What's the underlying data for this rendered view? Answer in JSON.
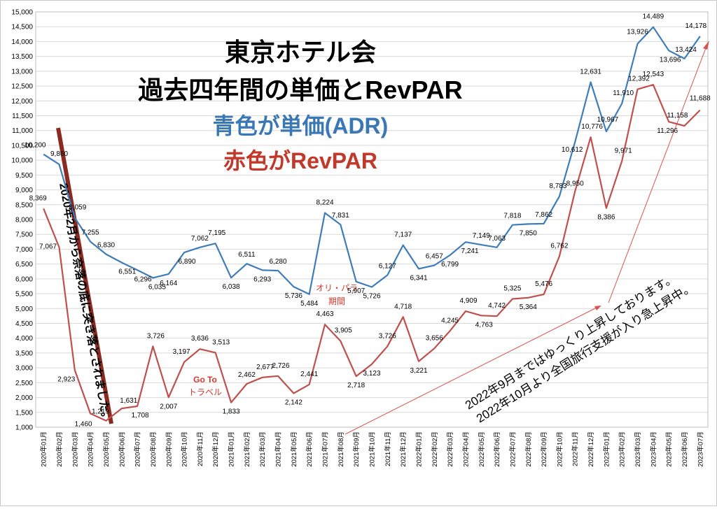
{
  "chart_data": {
    "type": "line",
    "title_lines": [
      "東京ホテル会",
      "過去四年間の単価とRevPAR"
    ],
    "legend_lines": [
      {
        "text": "青色が単価(ADR)",
        "color": "#3a78b5"
      },
      {
        "text": "赤色がRevPAR",
        "color": "#c0392b"
      }
    ],
    "ylim": [
      1000,
      15000
    ],
    "ytick_step": 500,
    "categories": [
      "2020年01月",
      "2020年02月",
      "2020年03月",
      "2020年04月",
      "2020年05月",
      "2020年06月",
      "2020年07月",
      "2020年08月",
      "2020年09月",
      "2020年10月",
      "2020年11月",
      "2020年12月",
      "2021年01月",
      "2021年02月",
      "2021年03月",
      "2021年04月",
      "2021年05月",
      "2021年06月",
      "2021年07月",
      "2021年08月",
      "2021年09月",
      "2021年10月",
      "2021年11月",
      "2021年12月",
      "2022年01月",
      "2022年02月",
      "2022年03月",
      "2022年04月",
      "2022年05月",
      "2022年06月",
      "2022年07月",
      "2022年08月",
      "2022年09月",
      "2022年10月",
      "2022年11月",
      "2022年12月",
      "2023年01月",
      "2023年02月",
      "2023年03月",
      "2023年04月",
      "2023年05月",
      "2023年06月",
      "2023年07月"
    ],
    "series": [
      {
        "name": "単価(ADR)",
        "color": "#3f7db8",
        "values": [
          10200,
          9860,
          8059,
          7255,
          6830,
          6551,
          6296,
          6035,
          6164,
          6890,
          7062,
          7195,
          6038,
          6511,
          6293,
          6280,
          5736,
          5484,
          8224,
          7831,
          5907,
          5726,
          6127,
          7137,
          6341,
          6457,
          6799,
          7241,
          7149,
          7063,
          7818,
          7850,
          7862,
          8783,
          10612,
          12631,
          10967,
          11910,
          13926,
          14489,
          13696,
          13424,
          14178
        ],
        "labels": [
          "10,200",
          "9,860",
          "8,059",
          "7,255",
          "6,830",
          "6,551",
          "6,296",
          "6,035",
          "6,164",
          "6,890",
          "7,062",
          "7,195",
          "6,038",
          "6,511",
          "6,293",
          "6,280",
          "5,736",
          "5,484",
          "8,224",
          "7,831",
          "5,907",
          "5,726",
          "6,127",
          "7,137",
          "6,341",
          "6,457",
          "6,799",
          "7,241",
          "7,149",
          "7,063",
          "7,818",
          "7,850",
          "7,862",
          "8,783",
          "10,612",
          "12,631",
          "10,967",
          "11,910",
          "13,926",
          "14,489",
          "13,696",
          "13,424",
          "14,178"
        ]
      },
      {
        "name": "RevPAR",
        "color": "#c0504d",
        "values": [
          8369,
          7067,
          2923,
          1460,
          1219,
          1631,
          1708,
          3726,
          2007,
          3197,
          3636,
          3513,
          1833,
          2462,
          2677,
          2726,
          2142,
          2441,
          4463,
          3905,
          2718,
          3123,
          3726,
          4718,
          3221,
          3656,
          4245,
          4909,
          4763,
          4742,
          5325,
          5364,
          5476,
          6762,
          8950,
          10776,
          8386,
          9971,
          12392,
          12543,
          11296,
          11158,
          11688
        ],
        "labels": [
          "8,369",
          "7,067",
          "2,923",
          "1,460",
          "1,219",
          "1,631",
          "1,708",
          "3,726",
          "2,007",
          "3,197",
          "3,636",
          "3,513",
          "1,833",
          "2,462",
          "2,677",
          "2,726",
          "2,142",
          "2,441",
          "4,463",
          "3,905",
          "2,718",
          "3,123",
          "3,726",
          "4,718",
          "3,221",
          "3,656",
          "4,245",
          "4,909",
          "4,763",
          "4,742",
          "5,325",
          "5,364",
          "5,476",
          "6,762",
          "8,950",
          "10,776",
          "8,386",
          "9,971",
          "12,392",
          "12,543",
          "11,296",
          "11,158",
          "11,688"
        ]
      }
    ],
    "annotations": {
      "fall": "2020年2月から奈落の底に突き落とされました。",
      "goto": [
        "Go To",
        "トラベル"
      ],
      "olympics": [
        "オリ・パラ",
        "期間"
      ],
      "recovery": [
        "2022年9月まではゆっくり上昇しております。",
        "2022年10月より全国旅行支援が入り急上昇中。"
      ]
    }
  }
}
